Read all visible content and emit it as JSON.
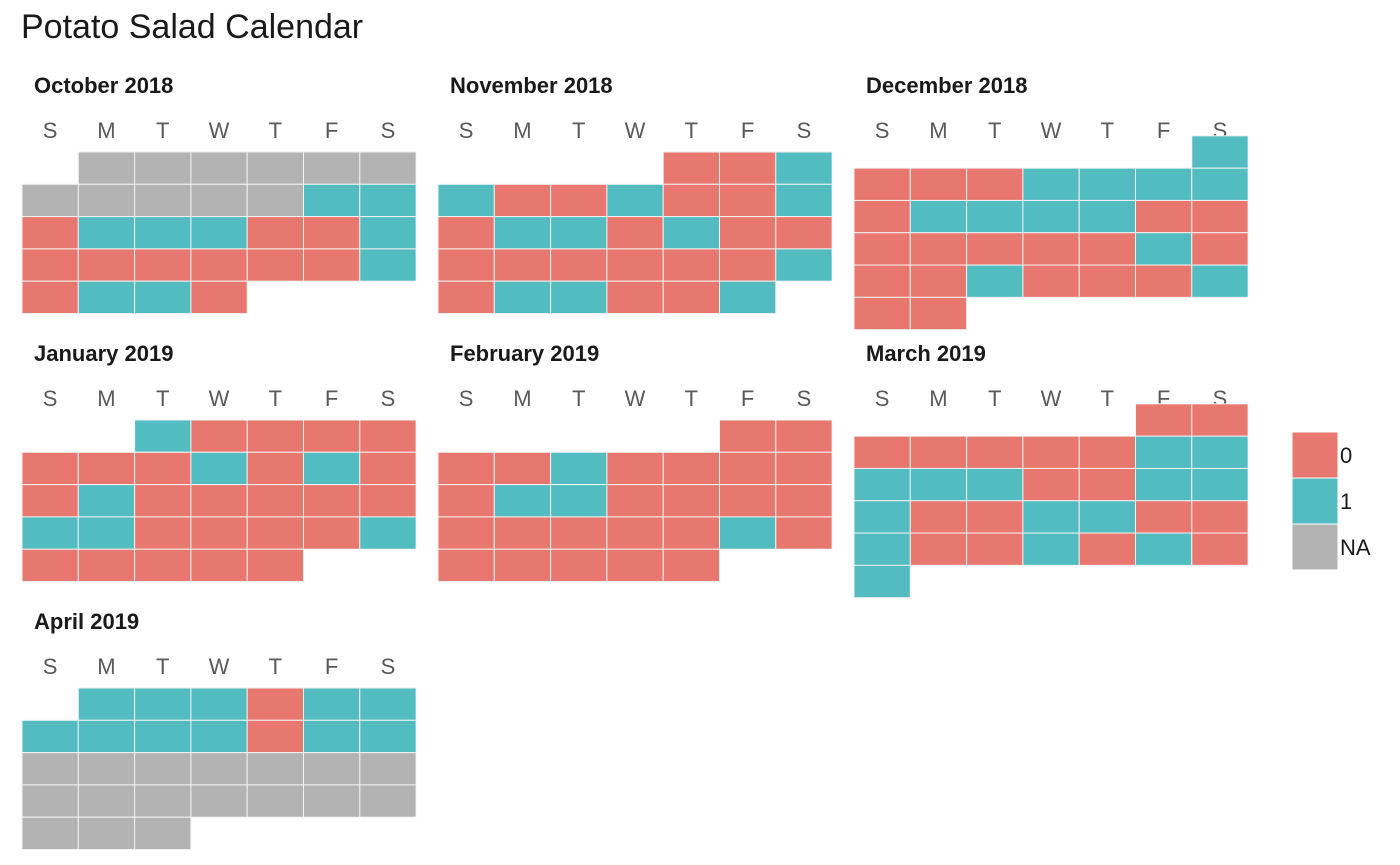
{
  "title": "Potato Salad Calendar",
  "chart_data": {
    "type": "heatmap",
    "title": "Potato Salad Calendar",
    "weekday_labels": [
      "S",
      "M",
      "T",
      "W",
      "T",
      "F",
      "S"
    ],
    "colors": {
      "0": "#E8786F",
      "1": "#52BCC0",
      "NA": "#B3B3B3"
    },
    "legend": {
      "position": "right",
      "entries": [
        {
          "label": "0",
          "key": "0"
        },
        {
          "label": "1",
          "key": "1"
        },
        {
          "label": "NA",
          "key": "NA"
        }
      ]
    },
    "months": [
      {
        "name": "October 2018",
        "start_weekday": 1,
        "values": [
          "NA",
          "NA",
          "NA",
          "NA",
          "NA",
          "NA",
          "NA",
          "NA",
          "NA",
          "NA",
          "NA",
          "1",
          "1",
          "0",
          "1",
          "1",
          "1",
          "0",
          "0",
          "1",
          "0",
          "0",
          "0",
          "0",
          "0",
          "0",
          "1",
          "0",
          "1",
          "1",
          "0"
        ]
      },
      {
        "name": "November 2018",
        "start_weekday": 4,
        "values": [
          "0",
          "0",
          "1",
          "1",
          "0",
          "0",
          "1",
          "0",
          "0",
          "1",
          "0",
          "1",
          "1",
          "0",
          "1",
          "0",
          "0",
          "0",
          "0",
          "0",
          "0",
          "0",
          "0",
          "1",
          "0",
          "1",
          "1",
          "0",
          "0",
          "1"
        ]
      },
      {
        "name": "December 2018",
        "start_weekday": 6,
        "values": [
          "1",
          "0",
          "0",
          "0",
          "1",
          "1",
          "1",
          "1",
          "0",
          "1",
          "1",
          "1",
          "1",
          "0",
          "0",
          "0",
          "0",
          "0",
          "0",
          "0",
          "1",
          "0",
          "0",
          "0",
          "1",
          "0",
          "0",
          "0",
          "1",
          "0",
          "0"
        ]
      },
      {
        "name": "January 2019",
        "start_weekday": 2,
        "values": [
          "1",
          "0",
          "0",
          "0",
          "0",
          "0",
          "0",
          "0",
          "1",
          "0",
          "1",
          "0",
          "0",
          "1",
          "0",
          "0",
          "0",
          "0",
          "0",
          "1",
          "1",
          "0",
          "0",
          "0",
          "0",
          "1",
          "0",
          "0",
          "0",
          "0",
          "0"
        ]
      },
      {
        "name": "February 2019",
        "start_weekday": 5,
        "values": [
          "0",
          "0",
          "0",
          "0",
          "1",
          "0",
          "0",
          "0",
          "0",
          "0",
          "1",
          "1",
          "0",
          "0",
          "0",
          "0",
          "0",
          "0",
          "0",
          "0",
          "0",
          "1",
          "0",
          "0",
          "0",
          "0",
          "0",
          "0"
        ]
      },
      {
        "name": "March 2019",
        "start_weekday": 5,
        "values": [
          "0",
          "0",
          "0",
          "0",
          "0",
          "0",
          "0",
          "1",
          "1",
          "1",
          "1",
          "1",
          "0",
          "0",
          "1",
          "1",
          "1",
          "0",
          "0",
          "1",
          "1",
          "0",
          "0",
          "1",
          "0",
          "0",
          "1",
          "0",
          "1",
          "0",
          "1"
        ]
      },
      {
        "name": "April 2019",
        "start_weekday": 1,
        "values": [
          "1",
          "1",
          "1",
          "0",
          "1",
          "1",
          "1",
          "1",
          "1",
          "1",
          "0",
          "1",
          "1",
          "NA",
          "NA",
          "NA",
          "NA",
          "NA",
          "NA",
          "NA",
          "NA",
          "NA",
          "NA",
          "NA",
          "NA",
          "NA",
          "NA",
          "NA",
          "NA",
          "NA"
        ]
      }
    ]
  }
}
